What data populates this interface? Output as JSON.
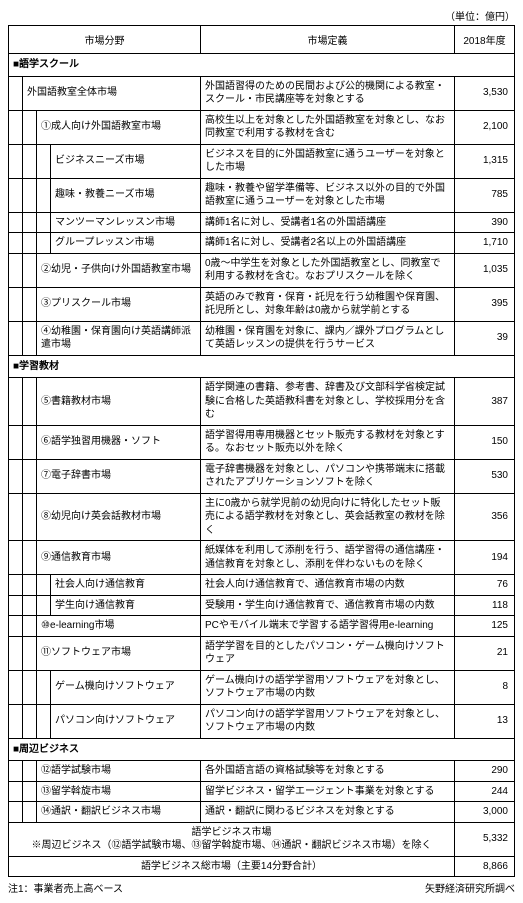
{
  "unit_label": "（単位：億円）",
  "headers": {
    "field": "市場分野",
    "definition": "市場定義",
    "year": "2018年度"
  },
  "sections": [
    {
      "title": "■語学スクール",
      "rows": [
        {
          "indent": 1,
          "name": "外国語教室全体市場",
          "def": "外国語習得のための民間および公的機関による教室・スクール・市民講座等を対象とする",
          "val": "3,530"
        },
        {
          "indent": 2,
          "name": "①成人向け外国語教室市場",
          "def": "高校生以上を対象とした外国語教室を対象とし、なお同教室で利用する教材を含む",
          "val": "2,100"
        },
        {
          "indent": 3,
          "name": "ビジネスニーズ市場",
          "def": "ビジネスを目的に外国語教室に通うユーザーを対象とした市場",
          "val": "1,315"
        },
        {
          "indent": 3,
          "name": "趣味・教養ニーズ市場",
          "def": "趣味・教養や留学準備等、ビジネス以外の目的で外国語教室に通うユーザーを対象とした市場",
          "val": "785"
        },
        {
          "indent": 3,
          "name": "マンツーマンレッスン市場",
          "def": "講師1名に対し、受講者1名の外国語講座",
          "val": "390"
        },
        {
          "indent": 3,
          "name": "グループレッスン市場",
          "def": "講師1名に対し、受講者2名以上の外国語講座",
          "val": "1,710"
        },
        {
          "indent": 2,
          "name": "②幼児・子供向け外国語教室市場",
          "def": "0歳～中学生を対象とした外国語教室とし、同教室で利用する教材を含む。なおプリスクールを除く",
          "val": "1,035"
        },
        {
          "indent": 2,
          "name": "③プリスクール市場",
          "def": "英語のみで教育・保育・託児を行う幼稚園や保育園、託児所とし、対象年齢は0歳から就学前とする",
          "val": "395"
        },
        {
          "indent": 2,
          "name": "④幼稚園・保育園向け英語講師派遣市場",
          "def": "幼稚園・保育園を対象に、課内／課外プログラムとして英語レッスンの提供を行うサービス",
          "val": "39"
        }
      ]
    },
    {
      "title": "■学習教材",
      "rows": [
        {
          "indent": 2,
          "name": "⑤書籍教材市場",
          "def": "語学関連の書籍、参考書、辞書及び文部科学省検定試験に合格した英語教科書を対象とし、学校採用分を含む",
          "val": "387"
        },
        {
          "indent": 2,
          "name": "⑥語学独習用機器・ソフト",
          "def": "語学習得用専用機器とセット販売する教材を対象とする。なおセット販売以外を除く",
          "val": "150"
        },
        {
          "indent": 2,
          "name": "⑦電子辞書市場",
          "def": "電子辞書機器を対象とし、パソコンや携帯端末に搭載されたアプリケーションソフトを除く",
          "val": "530"
        },
        {
          "indent": 2,
          "name": "⑧幼児向け英会話教材市場",
          "def": "主に0歳から就学児前の幼児向けに特化したセット販売による語学教材を対象とし、英会話教室の教材を除く",
          "val": "356"
        },
        {
          "indent": 2,
          "name": "⑨通信教育市場",
          "def": "紙媒体を利用して添削を行う、語学習得の通信講座・通信教育を対象とし、添削を伴わないものを除く",
          "val": "194"
        },
        {
          "indent": 3,
          "name": "社会人向け通信教育",
          "def": "社会人向け通信教育で、通信教育市場の内数",
          "val": "76"
        },
        {
          "indent": 3,
          "name": "学生向け通信教育",
          "def": "受験用・学生向け通信教育で、通信教育市場の内数",
          "val": "118"
        },
        {
          "indent": 2,
          "name": "⑩e-learning市場",
          "def": "PCやモバイル端末で学習する語学習得用e-learning",
          "val": "125"
        },
        {
          "indent": 2,
          "name": "⑪ソフトウェア市場",
          "def": "語学学習を目的としたパソコン・ゲーム機向けソフトウェア",
          "val": "21"
        },
        {
          "indent": 3,
          "name": "ゲーム機向けソフトウェア",
          "def": "ゲーム機向けの語学学習用ソフトウェアを対象とし、ソフトウェア市場の内数",
          "val": "8"
        },
        {
          "indent": 3,
          "name": "パソコン向けソフトウェア",
          "def": "パソコン向けの語学学習用ソフトウェアを対象とし、ソフトウェア市場の内数",
          "val": "13"
        }
      ]
    },
    {
      "title": "■周辺ビジネス",
      "rows": [
        {
          "indent": 2,
          "name": "⑫語学試験市場",
          "def": "各外国語言語の資格試験等を対象とする",
          "val": "290"
        },
        {
          "indent": 2,
          "name": "⑬留学斡旋市場",
          "def": "留学ビジネス・留学エージェント事業を対象とする",
          "val": "244"
        },
        {
          "indent": 2,
          "name": "⑭通訳・翻訳ビジネス市場",
          "def": "通訳・翻訳に関わるビジネスを対象とする",
          "val": "3,000"
        }
      ]
    }
  ],
  "totals": [
    {
      "label": "語学ビジネス市場\n※周辺ビジネス（⑫語学試験市場、⑬留学斡旋市場、⑭通訳・翻訳ビジネス市場）を除く",
      "val": "5,332"
    },
    {
      "label": "語学ビジネス総市場（主要14分野合計）",
      "val": "8,866"
    }
  ],
  "footnote_left": "注1：事業者売上高ベース",
  "footnote_right": "矢野経済研究所調べ"
}
